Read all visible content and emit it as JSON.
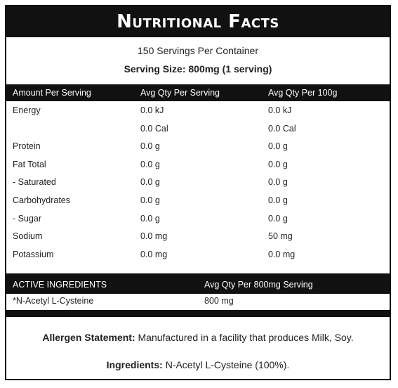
{
  "title": "Nutritional Facts",
  "servings_per_container": "150 Servings Per Container",
  "serving_size": "Serving Size: 800mg (1 serving)",
  "nutrition_table": {
    "headers": [
      "Amount Per Serving",
      "Avg Qty Per Serving",
      "Avg Qty Per 100g"
    ],
    "rows": [
      {
        "label": "Energy",
        "per_serving": [
          "0.0 kJ",
          "0.0 Cal"
        ],
        "per_100g": [
          "0.0 kJ",
          "0.0 Cal"
        ]
      },
      {
        "label": "Protein",
        "per_serving": [
          "0.0 g"
        ],
        "per_100g": [
          "0.0 g"
        ]
      },
      {
        "label": "Fat Total",
        "per_serving": [
          "0.0 g"
        ],
        "per_100g": [
          "0.0 g"
        ]
      },
      {
        "label": "- Saturated",
        "per_serving": [
          "0.0 g"
        ],
        "per_100g": [
          "0.0 g"
        ]
      },
      {
        "label": "Carbohydrates",
        "per_serving": [
          "0.0 g"
        ],
        "per_100g": [
          "0.0 g"
        ]
      },
      {
        "label": "- Sugar",
        "per_serving": [
          "0.0 g"
        ],
        "per_100g": [
          "0.0 g"
        ]
      },
      {
        "label": "Sodium",
        "per_serving": [
          "0.0 mg"
        ],
        "per_100g": [
          "50 mg"
        ]
      },
      {
        "label": "Potassium",
        "per_serving": [
          "0.0 mg"
        ],
        "per_100g": [
          "0.0 mg"
        ]
      }
    ]
  },
  "active_table": {
    "headers": [
      "ACTIVE INGREDIENTS",
      "Avg Qty Per 800mg Serving"
    ],
    "rows": [
      [
        "*N-Acetyl L-Cysteine",
        "800 mg"
      ]
    ]
  },
  "allergen": {
    "label": "Allergen Statement:",
    "text": "Manufactured in a facility that produces Milk, Soy."
  },
  "ingredients": {
    "label": "Ingredients:",
    "text": "N-Acetyl L-Cysteine (100%)."
  }
}
